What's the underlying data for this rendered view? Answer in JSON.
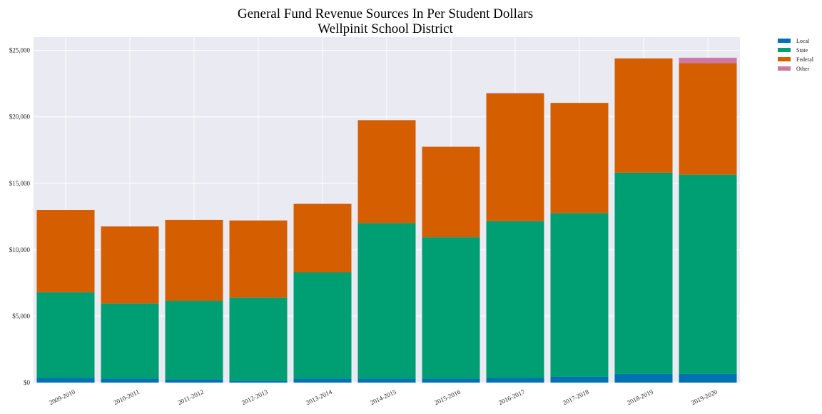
{
  "chart_data": {
    "type": "bar",
    "stacked": true,
    "title": "General Fund Revenue Sources In Per Student Dollars",
    "subtitle": "Wellpinit School District",
    "categories": [
      "2009-2010",
      "2010-2011",
      "2011-2012",
      "2012-2013",
      "2013-2014",
      "2014-2015",
      "2015-2016",
      "2016-2017",
      "2017-2018",
      "2018-2019",
      "2019-2020"
    ],
    "series": [
      {
        "name": "Local",
        "color": "#0072B2",
        "values": [
          350,
          300,
          250,
          150,
          300,
          300,
          300,
          350,
          450,
          650,
          650
        ]
      },
      {
        "name": "State",
        "color": "#009E73",
        "values": [
          6450,
          5650,
          5900,
          6250,
          8000,
          11700,
          10650,
          11800,
          12300,
          15150,
          15000
        ]
      },
      {
        "name": "Federal",
        "color": "#D55E00",
        "values": [
          6200,
          5800,
          6100,
          5800,
          5150,
          7750,
          6800,
          9600,
          8300,
          8600,
          8400
        ]
      },
      {
        "name": "Other",
        "color": "#CC79A7",
        "values": [
          0,
          0,
          0,
          0,
          0,
          0,
          0,
          50,
          0,
          0,
          400
        ]
      }
    ],
    "yticks": [
      "$0",
      "$5,000",
      "$10,000",
      "$15,000",
      "$20,000",
      "$25,000"
    ],
    "ytick_values": [
      0,
      5000,
      10000,
      15000,
      20000,
      25000
    ],
    "ylim": [
      0,
      26000
    ],
    "grid": true,
    "legend_position": "outside-top-right",
    "plot_background": "#EAEAF2",
    "grid_color": "#FFFFFF"
  }
}
